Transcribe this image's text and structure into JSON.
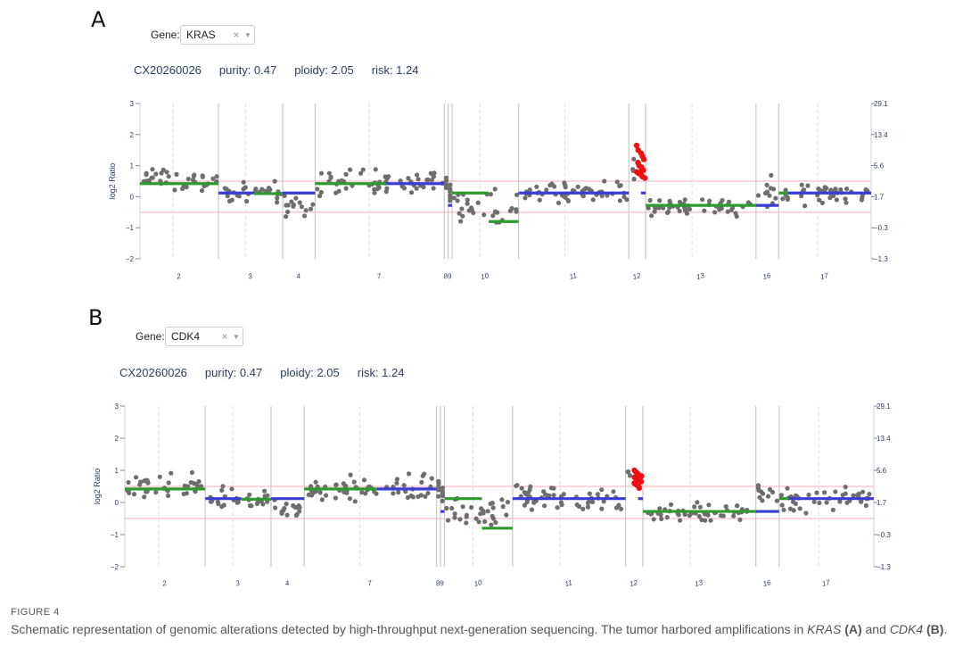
{
  "panels": [
    {
      "letter": "A",
      "gene_label": "Gene:",
      "gene_value": "KRAS",
      "sample": "CX20260026",
      "purity": "purity: 0.47",
      "ploidy": "ploidy: 2.05",
      "risk": "risk: 1.24",
      "highlight_chrom": "12"
    },
    {
      "letter": "B",
      "gene_label": "Gene:",
      "gene_value": "CDK4",
      "sample": "CX20260026",
      "purity": "purity: 0.47",
      "ploidy": "ploidy: 2.05",
      "risk": "risk: 1.24",
      "highlight_chrom": "12"
    }
  ],
  "caption": {
    "label": "FIGURE 4",
    "text_1": "Schematic representation of genomic alterations detected by high-throughput next-generation sequencing. The tumor harbored amplifications in ",
    "gene_1": "KRAS",
    "ref_1": "(A)",
    "text_2": " and ",
    "gene_2": "CDK4",
    "ref_2": "(B)",
    "text_3": "."
  },
  "chart_data": [
    {
      "type": "scatter",
      "title": "",
      "ylabel": "log2 Ratio",
      "ylim": [
        -2,
        3
      ],
      "y_ticks": [
        "3",
        "2",
        "1",
        "0",
        "−1",
        "−2"
      ],
      "y_tick_values": [
        3,
        2,
        1,
        0,
        -1,
        -2
      ],
      "y2_ticks": [
        "29.1",
        "13.4",
        "5.6",
        "1.7",
        "−0.3",
        "−1.3"
      ],
      "threshold_lines": [
        0.5,
        -0.5
      ],
      "grid": false,
      "chromosomes": [
        {
          "label": "2",
          "length": 2.42,
          "segments": [
            {
              "from": 0,
              "to": 1,
              "value": 0.42,
              "color": "green"
            }
          ],
          "points_mean": 0.55,
          "points_spread": 0.32
        },
        {
          "label": "3",
          "length": 1.98,
          "segments": [
            {
              "from": 0,
              "to": 0.55,
              "value": 0.12,
              "color": "blue"
            },
            {
              "from": 0.55,
              "to": 1,
              "value": 0.1,
              "color": "green"
            }
          ],
          "points_mean": 0.12,
          "points_spread": 0.24
        },
        {
          "label": "4",
          "length": 1.0,
          "segments": [
            {
              "from": 0,
              "to": 1,
              "value": 0.12,
              "color": "blue"
            }
          ],
          "points_mean": -0.28,
          "points_spread": 0.25
        },
        {
          "label": "7",
          "length": 3.98,
          "segments": [
            {
              "from": 0,
              "to": 0.55,
              "value": 0.42,
              "color": "green"
            },
            {
              "from": 0.55,
              "to": 1,
              "value": 0.42,
              "color": "blue"
            }
          ],
          "points_mean": 0.45,
          "points_spread": 0.3
        },
        {
          "label": "8",
          "length": 0.12,
          "segments": [],
          "points_mean": 0.4,
          "points_spread": 0.2
        },
        {
          "label": "9",
          "length": 0.12,
          "segments": [
            {
              "from": 0,
              "to": 1,
              "value": -0.28,
              "color": "blue"
            }
          ],
          "points_mean": 0.3,
          "points_spread": 0.3
        },
        {
          "label": "10",
          "length": 2.05,
          "segments": [
            {
              "from": 0,
              "to": 0.55,
              "value": 0.12,
              "color": "green"
            },
            {
              "from": 0.55,
              "to": 1,
              "value": -0.8,
              "color": "green"
            }
          ],
          "points_mean": -0.4,
          "points_spread": 0.38
        },
        {
          "label": "11",
          "length": 3.4,
          "segments": [
            {
              "from": 0,
              "to": 1,
              "value": 0.12,
              "color": "blue"
            }
          ],
          "points_mean": 0.18,
          "points_spread": 0.28
        },
        {
          "label": "12",
          "length": 0.52,
          "segments": [
            {
              "from": 0.72,
              "to": 1,
              "value": 0.12,
              "color": "blue"
            }
          ],
          "points_mean": 0.85,
          "points_spread": 0.28
        },
        {
          "label": "13",
          "length": 3.4,
          "segments": [
            {
              "from": 0,
              "to": 1,
              "value": -0.28,
              "color": "green"
            }
          ],
          "points_mean": -0.3,
          "points_spread": 0.2
        },
        {
          "label": "16",
          "length": 0.7,
          "segments": [
            {
              "from": 0,
              "to": 1,
              "value": -0.28,
              "color": "blue"
            }
          ],
          "points_mean": 0.15,
          "points_spread": 0.35
        },
        {
          "label": "17",
          "length": 2.85,
          "segments": [
            {
              "from": 0,
              "to": 0.1,
              "value": 0.12,
              "color": "green"
            },
            {
              "from": 0.1,
              "to": 1,
              "value": 0.12,
              "color": "blue"
            }
          ],
          "points_mean": 0.15,
          "points_spread": 0.25
        }
      ],
      "amplified_points": {
        "chrom": "12",
        "label": "KRAS",
        "y_values": [
          1.65,
          1.5,
          1.4,
          1.3,
          1.2,
          1.1,
          1.0,
          0.95,
          0.9,
          0.85,
          0.8,
          0.75,
          0.7,
          0.65,
          0.6
        ]
      }
    },
    {
      "type": "scatter",
      "title": "",
      "ylabel": "log2 Ratio",
      "ylim": [
        -2,
        3
      ],
      "y_ticks": [
        "3",
        "2",
        "1",
        "0",
        "−1",
        "−2"
      ],
      "y_tick_values": [
        3,
        2,
        1,
        0,
        -1,
        -2
      ],
      "y2_ticks": [
        "29.1",
        "13.4",
        "5.6",
        "1.7",
        "−0.3",
        "−1.3"
      ],
      "threshold_lines": [
        0.5,
        -0.5
      ],
      "grid": false,
      "chromosomes": [
        {
          "label": "2",
          "length": 2.42,
          "segments": [
            {
              "from": 0,
              "to": 1,
              "value": 0.42,
              "color": "green"
            }
          ],
          "points_mean": 0.55,
          "points_spread": 0.32
        },
        {
          "label": "3",
          "length": 1.98,
          "segments": [
            {
              "from": 0,
              "to": 0.55,
              "value": 0.12,
              "color": "blue"
            },
            {
              "from": 0.55,
              "to": 1,
              "value": 0.1,
              "color": "green"
            }
          ],
          "points_mean": 0.12,
          "points_spread": 0.24
        },
        {
          "label": "4",
          "length": 1.0,
          "segments": [
            {
              "from": 0,
              "to": 1,
              "value": 0.12,
              "color": "blue"
            }
          ],
          "points_mean": -0.28,
          "points_spread": 0.25
        },
        {
          "label": "7",
          "length": 3.98,
          "segments": [
            {
              "from": 0,
              "to": 0.55,
              "value": 0.42,
              "color": "green"
            },
            {
              "from": 0.55,
              "to": 1,
              "value": 0.42,
              "color": "blue"
            }
          ],
          "points_mean": 0.45,
          "points_spread": 0.3
        },
        {
          "label": "8",
          "length": 0.12,
          "segments": [],
          "points_mean": 0.4,
          "points_spread": 0.2
        },
        {
          "label": "9",
          "length": 0.12,
          "segments": [
            {
              "from": 0,
              "to": 1,
              "value": -0.28,
              "color": "blue"
            }
          ],
          "points_mean": 0.3,
          "points_spread": 0.3
        },
        {
          "label": "10",
          "length": 2.05,
          "segments": [
            {
              "from": 0,
              "to": 0.55,
              "value": 0.12,
              "color": "green"
            },
            {
              "from": 0.55,
              "to": 1,
              "value": -0.8,
              "color": "green"
            }
          ],
          "points_mean": -0.4,
          "points_spread": 0.38
        },
        {
          "label": "11",
          "length": 3.4,
          "segments": [
            {
              "from": 0,
              "to": 1,
              "value": 0.12,
              "color": "blue"
            }
          ],
          "points_mean": 0.18,
          "points_spread": 0.28
        },
        {
          "label": "12",
          "length": 0.52,
          "segments": [
            {
              "from": 0.72,
              "to": 1,
              "value": 0.12,
              "color": "blue"
            }
          ],
          "points_mean": 0.85,
          "points_spread": 0.28
        },
        {
          "label": "13",
          "length": 3.4,
          "segments": [
            {
              "from": 0,
              "to": 1,
              "value": -0.28,
              "color": "green"
            }
          ],
          "points_mean": -0.3,
          "points_spread": 0.2
        },
        {
          "label": "16",
          "length": 0.7,
          "segments": [
            {
              "from": 0,
              "to": 1,
              "value": -0.28,
              "color": "blue"
            }
          ],
          "points_mean": 0.15,
          "points_spread": 0.35
        },
        {
          "label": "17",
          "length": 2.85,
          "segments": [
            {
              "from": 0,
              "to": 0.1,
              "value": 0.12,
              "color": "green"
            },
            {
              "from": 0.1,
              "to": 1,
              "value": 0.12,
              "color": "blue"
            }
          ],
          "points_mean": 0.15,
          "points_spread": 0.25
        }
      ],
      "amplified_points": {
        "chrom": "12",
        "label": "CDK4",
        "y_values": [
          1.0,
          0.95,
          0.9,
          0.85,
          0.82,
          0.78,
          0.75,
          0.72,
          0.7,
          0.65,
          0.6,
          0.55,
          0.5,
          0.45,
          0.8
        ]
      }
    }
  ],
  "colors": {
    "point": "#6e6e6e",
    "amplified": "#ee1111",
    "segment_green": "#2e9a2e",
    "segment_blue": "#3b3bd6",
    "threshold": "#f7c9cf",
    "divider": "#c8c8c8",
    "axis_text": "#2a3f5f"
  }
}
